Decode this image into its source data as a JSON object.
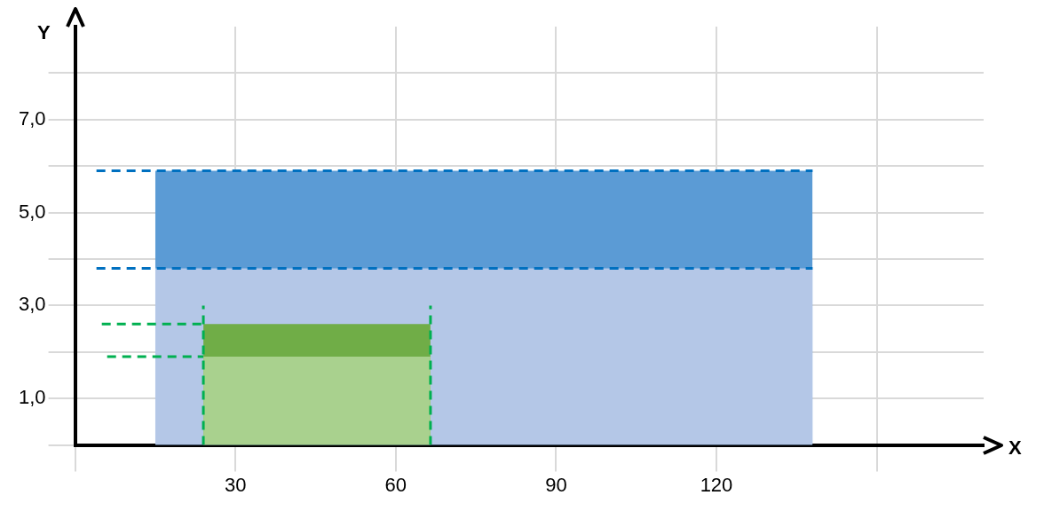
{
  "chart_data": {
    "type": "area",
    "xlabel": "X",
    "ylabel": "Y",
    "xlim": [
      0,
      170
    ],
    "ylim": [
      0,
      9
    ],
    "xticks": [
      {
        "value": 0,
        "label": null
      },
      30,
      60,
      90,
      120,
      {
        "value": 150,
        "label": null
      }
    ],
    "yticks": [
      {
        "value": 0,
        "label": null
      },
      {
        "value": 1,
        "label": "1,0"
      },
      {
        "value": 2,
        "label": null
      },
      {
        "value": 3,
        "label": "3,0"
      },
      {
        "value": 4,
        "label": null
      },
      {
        "value": 5,
        "label": "5,0"
      },
      {
        "value": 6,
        "label": null
      },
      {
        "value": 7,
        "label": "7,0"
      },
      {
        "value": 8,
        "label": null
      }
    ],
    "grid": true,
    "legend": false,
    "series": [
      {
        "color": "#5b9bd5",
        "x": [
          15,
          138
        ],
        "values": [
          5.9,
          5.9
        ]
      },
      {
        "color": "#b4c7e7",
        "x": [
          15,
          138
        ],
        "values": [
          3.8,
          3.8
        ]
      },
      {
        "color": "#70ad47",
        "x": [
          24,
          66.5
        ],
        "values": [
          2.6,
          2.6
        ]
      },
      {
        "color": "#a9d18e",
        "x": [
          24,
          66.5
        ],
        "values": [
          1.9,
          1.9
        ]
      },
      {
        "type": "line",
        "line_style": "dashed",
        "color": "#0070c0",
        "x": [
          4,
          138
        ],
        "values": [
          5.9,
          5.9
        ]
      },
      {
        "type": "line",
        "line_style": "dashed",
        "color": "#0070c0",
        "x": [
          4,
          138
        ],
        "values": [
          3.8,
          3.8
        ]
      },
      {
        "type": "line",
        "line_style": "dashed",
        "color": "#00b050",
        "x": [
          5,
          24
        ],
        "values": [
          2.6,
          2.6
        ]
      },
      {
        "type": "line",
        "line_style": "dashed",
        "color": "#00b050",
        "x": [
          6,
          24
        ],
        "values": [
          1.9,
          1.9
        ]
      },
      {
        "type": "line",
        "line_style": "dashed",
        "color": "#00b050",
        "x": [
          24,
          24
        ],
        "values": [
          0,
          3
        ]
      },
      {
        "type": "line",
        "line_style": "dashed",
        "color": "#00b050",
        "x": [
          66.5,
          66.5
        ],
        "values": [
          0,
          3
        ]
      }
    ]
  }
}
